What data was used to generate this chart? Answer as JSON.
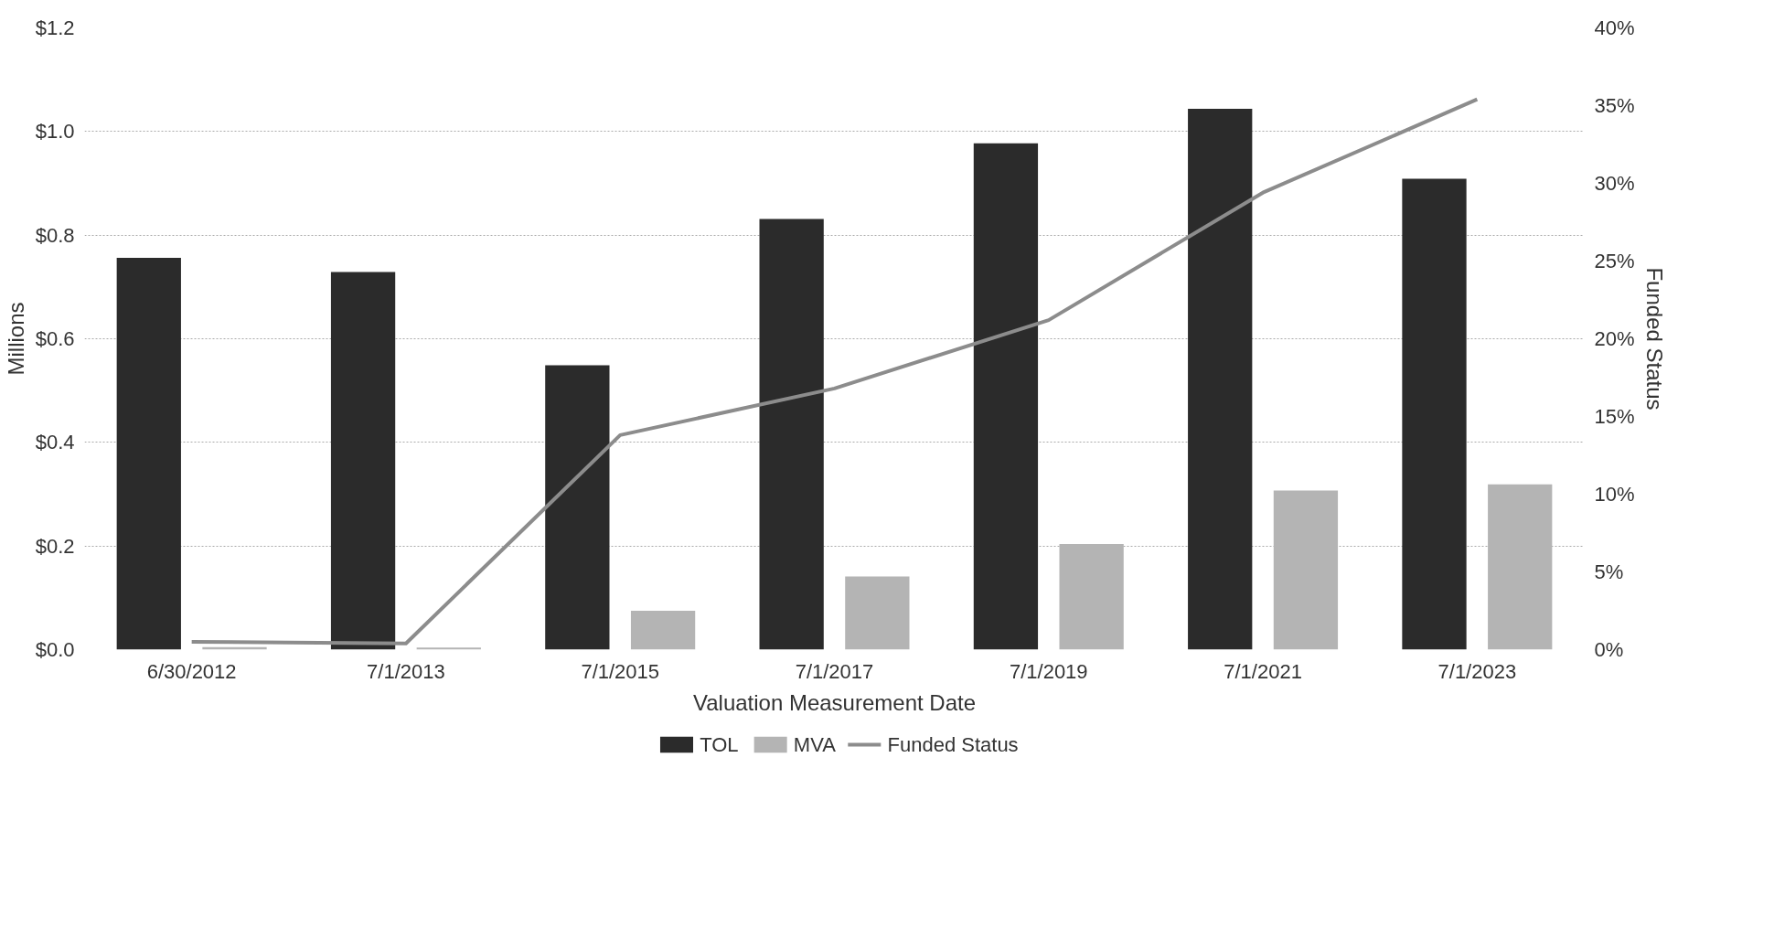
{
  "chart_data": {
    "type": "bar",
    "xlabel": "Valuation Measurement Date",
    "ylabel": "Millions",
    "y2label": "Funded Status",
    "categories": [
      "6/30/2012",
      "7/1/2013",
      "7/1/2015",
      "7/1/2017",
      "7/1/2019",
      "7/1/2021",
      "7/1/2023"
    ],
    "series": [
      {
        "name": "TOL",
        "color": "#2b2b2b",
        "values": [
          0.756,
          0.729,
          0.549,
          0.831,
          0.977,
          1.044,
          0.909
        ]
      },
      {
        "name": "MVA",
        "color": "#b4b4b4",
        "values": [
          0.005,
          0.004,
          0.075,
          0.141,
          0.204,
          0.307,
          0.319
        ]
      },
      {
        "name": "Funded Status",
        "type": "line",
        "axis": "y2",
        "color": "#8c8c8c",
        "values": [
          0.5,
          0.4,
          13.8,
          16.8,
          21.2,
          29.4,
          35.4
        ]
      }
    ],
    "ylim": [
      0,
      1.2
    ],
    "yticks": [
      {
        "value": 0,
        "label": "$0.0"
      },
      {
        "value": 0.2,
        "label": "$0.2"
      },
      {
        "value": 0.4,
        "label": "$0.4"
      },
      {
        "value": 0.6,
        "label": "$0.6"
      },
      {
        "value": 0.8,
        "label": "$0.8"
      },
      {
        "value": 1.0,
        "label": "$1.0"
      },
      {
        "value": 1.2,
        "label": "$1.2"
      }
    ],
    "y2lim": [
      0,
      40
    ],
    "y2ticks": [
      {
        "value": 0,
        "label": "0%"
      },
      {
        "value": 5,
        "label": "5%"
      },
      {
        "value": 10,
        "label": "10%"
      },
      {
        "value": 15,
        "label": "15%"
      },
      {
        "value": 20,
        "label": "20%"
      },
      {
        "value": 25,
        "label": "25%"
      },
      {
        "value": 30,
        "label": "30%"
      },
      {
        "value": 35,
        "label": "35%"
      },
      {
        "value": 40,
        "label": "40%"
      }
    ],
    "grid": "y",
    "legend": "bottom"
  }
}
